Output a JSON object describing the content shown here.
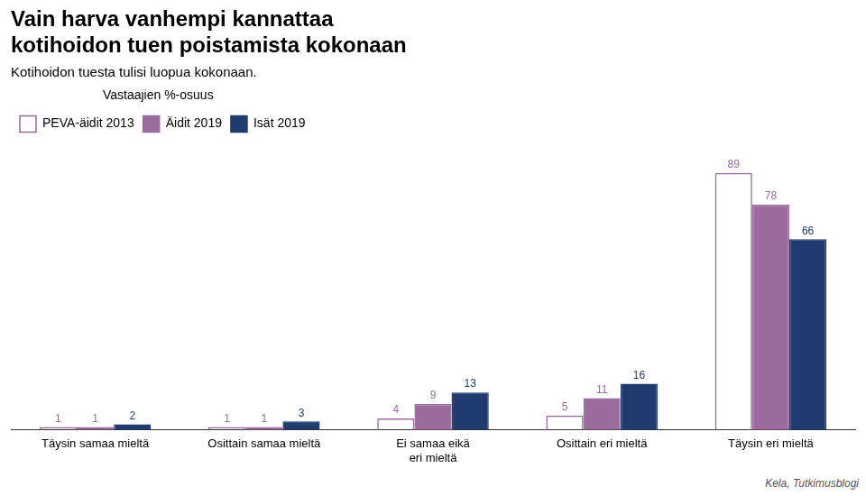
{
  "chart_data": {
    "type": "bar",
    "title": "Vain harva vanhempi kannattaa\nkotihoidon tuen poistamista kokonaan",
    "subtitle": "Kotihoidon tuesta tulisi luopua kokonaan.",
    "ylabel": "Vastaajien %-osuus",
    "annotations": [
      "Kela, Tutkimusblogi"
    ],
    "categories": [
      "Täysin samaa mieltä",
      "Osittain samaa mieltä",
      "Ei samaa eikä\neri mieltä",
      "Osittain eri mieltä",
      "Täysin eri mieltä"
    ],
    "series": [
      {
        "name": "PEVA-äidit 2013",
        "color": "#9b6b9e",
        "marker": "hollow",
        "values": [
          1,
          1,
          4,
          5,
          89
        ]
      },
      {
        "name": "Äidit 2019",
        "color": "#9b6b9e",
        "values": [
          1,
          1,
          9,
          11,
          78
        ]
      },
      {
        "name": "Isät 2019",
        "color": "#1e3a6e",
        "values": [
          2,
          3,
          13,
          16,
          66
        ]
      }
    ],
    "ylim": [
      0,
      100
    ],
    "grid": false,
    "legend": "upper left",
    "data_labels": true,
    "tick_labels": "x"
  }
}
